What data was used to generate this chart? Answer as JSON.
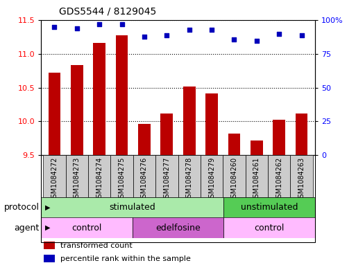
{
  "title": "GDS5544 / 8129045",
  "samples": [
    "GSM1084272",
    "GSM1084273",
    "GSM1084274",
    "GSM1084275",
    "GSM1084276",
    "GSM1084277",
    "GSM1084278",
    "GSM1084279",
    "GSM1084260",
    "GSM1084261",
    "GSM1084262",
    "GSM1084263"
  ],
  "transformed_count": [
    10.72,
    10.84,
    11.17,
    11.28,
    9.96,
    10.12,
    10.52,
    10.42,
    9.82,
    9.72,
    10.02,
    10.12
  ],
  "percentile_rank": [
    95,
    94,
    97,
    97,
    88,
    89,
    93,
    93,
    86,
    85,
    90,
    89
  ],
  "ylim_left": [
    9.5,
    11.5
  ],
  "ylim_right": [
    0,
    100
  ],
  "yticks_left": [
    9.5,
    10.0,
    10.5,
    11.0,
    11.5
  ],
  "yticks_right": [
    0,
    25,
    50,
    75,
    100
  ],
  "bar_color": "#bb0000",
  "dot_color": "#0000bb",
  "bar_bottom": 9.5,
  "protocol_groups": [
    {
      "label": "stimulated",
      "start": 0,
      "end": 8,
      "color": "#aaeaaa"
    },
    {
      "label": "unstimulated",
      "start": 8,
      "end": 12,
      "color": "#55cc55"
    }
  ],
  "agent_groups": [
    {
      "label": "control",
      "start": 0,
      "end": 4,
      "color": "#ffbbff"
    },
    {
      "label": "edelfosine",
      "start": 4,
      "end": 8,
      "color": "#cc66cc"
    },
    {
      "label": "control",
      "start": 8,
      "end": 12,
      "color": "#ffbbff"
    }
  ],
  "legend_items": [
    {
      "label": "transformed count",
      "color": "#bb0000"
    },
    {
      "label": "percentile rank within the sample",
      "color": "#0000bb"
    }
  ],
  "label_protocol": "protocol",
  "label_agent": "agent",
  "sample_box_color": "#cccccc",
  "title_fontsize": 10,
  "tick_fontsize": 7,
  "row_label_fontsize": 9,
  "row_text_fontsize": 9,
  "legend_fontsize": 8
}
